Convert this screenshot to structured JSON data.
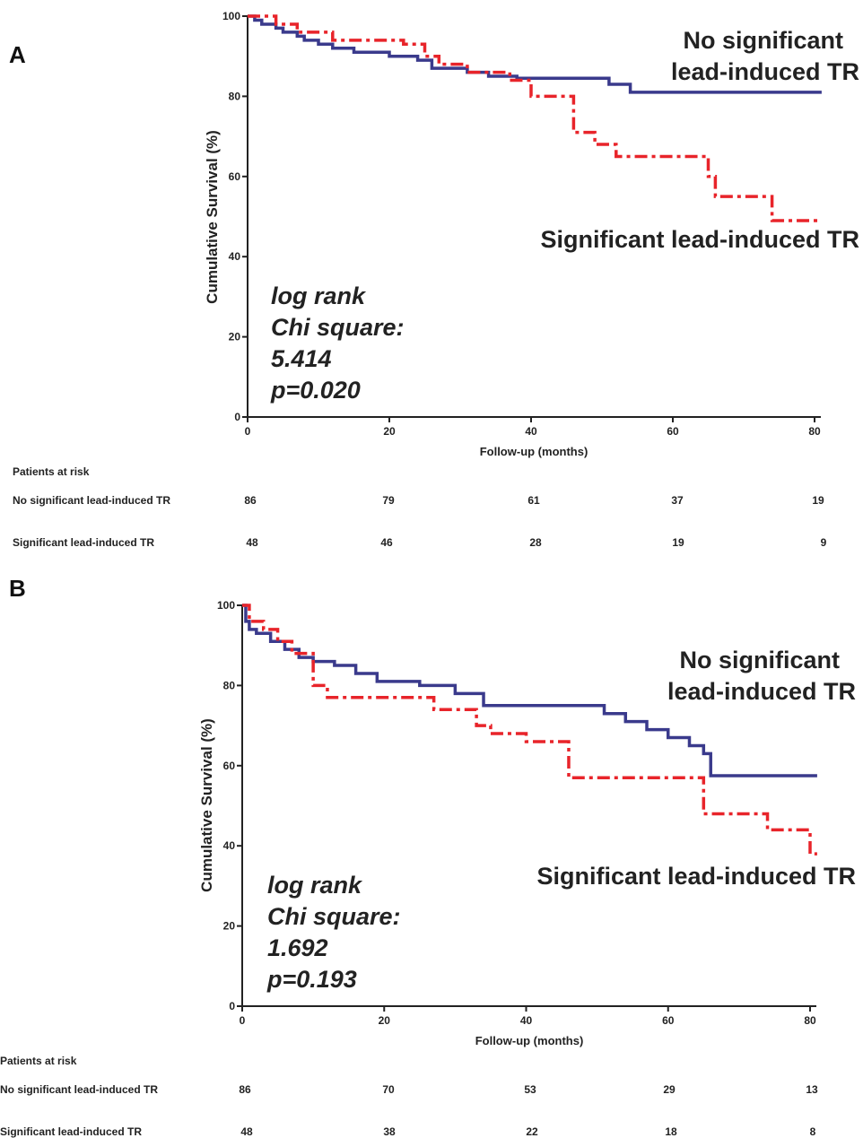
{
  "chart_data": [
    {
      "panel": "A",
      "type": "line",
      "step": true,
      "xlabel": "Follow-up (months)",
      "ylabel": "Cumulative Survival (%)",
      "xlim": [
        0,
        80
      ],
      "ylim": [
        0,
        100
      ],
      "xticks": [
        0,
        20,
        40,
        60,
        80
      ],
      "yticks": [
        0,
        20,
        40,
        60,
        80,
        100
      ],
      "curve_labels": {
        "no_significant": [
          "No significant",
          "lead-induced TR"
        ],
        "significant": [
          "Significant lead-induced TR"
        ]
      },
      "stats": [
        "log rank",
        "Chi square:",
        "5.414",
        "p=0.020"
      ],
      "series": [
        {
          "name": "No significant lead-induced TR",
          "color": "#3a3a8c",
          "style": "solid",
          "x": [
            0,
            1,
            2,
            4,
            5,
            7,
            8,
            10,
            12,
            15,
            20,
            24,
            26,
            31,
            34,
            38,
            51,
            54,
            81
          ],
          "y": [
            100,
            99,
            98,
            97,
            96,
            95,
            94,
            93,
            92,
            91,
            90,
            89,
            87,
            86,
            85,
            84.5,
            83,
            81,
            81
          ]
        },
        {
          "name": "Significant lead-induced TR",
          "color": "#e8242a",
          "style": "dashdot",
          "x": [
            0,
            4,
            7,
            12,
            22,
            25,
            27,
            31,
            37,
            40,
            46,
            49,
            52,
            61,
            65,
            66,
            74,
            81
          ],
          "y": [
            100,
            98,
            96,
            94,
            93,
            90,
            88,
            86,
            84,
            80,
            71,
            68,
            65,
            65,
            60,
            55,
            49,
            49
          ]
        }
      ],
      "patients_at_risk": {
        "title": "Patients at risk",
        "rows": [
          {
            "label": "No significant lead-induced TR",
            "values": [
              "86",
              "79",
              "61",
              "37",
              "19"
            ]
          },
          {
            "label": "Significant lead-induced TR",
            "values": [
              "48",
              "46",
              "28",
              "19",
              "9"
            ]
          }
        ]
      }
    },
    {
      "panel": "B",
      "type": "line",
      "step": true,
      "xlabel": "Follow-up (months)",
      "ylabel": "Cumulative Survival (%)",
      "xlim": [
        0,
        80
      ],
      "ylim": [
        0,
        100
      ],
      "xticks": [
        0,
        20,
        40,
        60,
        80
      ],
      "yticks": [
        0,
        20,
        40,
        60,
        80,
        100
      ],
      "curve_labels": {
        "no_significant": [
          "No significant",
          "lead-induced TR"
        ],
        "significant": [
          "Significant lead-induced TR"
        ]
      },
      "stats": [
        "log rank",
        "Chi square:",
        "1.692",
        "p=0.193"
      ],
      "series": [
        {
          "name": "No significant lead-induced TR",
          "color": "#3a3a8c",
          "style": "solid",
          "x": [
            0,
            0.5,
            1,
            2,
            4,
            6,
            8,
            10,
            13,
            16,
            19,
            25,
            30,
            34,
            51,
            54,
            57,
            60,
            63,
            65,
            66,
            81
          ],
          "y": [
            100,
            96,
            94,
            93,
            91,
            89,
            87,
            86,
            85,
            83,
            81,
            80,
            78,
            75,
            73,
            71,
            69,
            67,
            65,
            63,
            57.5,
            57.5
          ]
        },
        {
          "name": "Significant lead-induced TR",
          "color": "#e8242a",
          "style": "dashdot",
          "x": [
            0,
            1,
            3,
            5,
            7,
            10,
            12,
            24,
            27,
            33,
            35,
            40,
            46,
            64,
            65,
            74,
            80,
            81
          ],
          "y": [
            100,
            96,
            94,
            91,
            88,
            80,
            77,
            77,
            74,
            70,
            68,
            66,
            57,
            57,
            48,
            44,
            38,
            38
          ]
        }
      ],
      "patients_at_risk": {
        "title": "Patients at risk",
        "rows": [
          {
            "label": "No significant lead-induced TR",
            "values": [
              "86",
              "70",
              "53",
              "29",
              "13"
            ]
          },
          {
            "label": "Significant lead-induced TR",
            "values": [
              "48",
              "38",
              "22",
              "18",
              "8"
            ]
          }
        ]
      }
    }
  ]
}
